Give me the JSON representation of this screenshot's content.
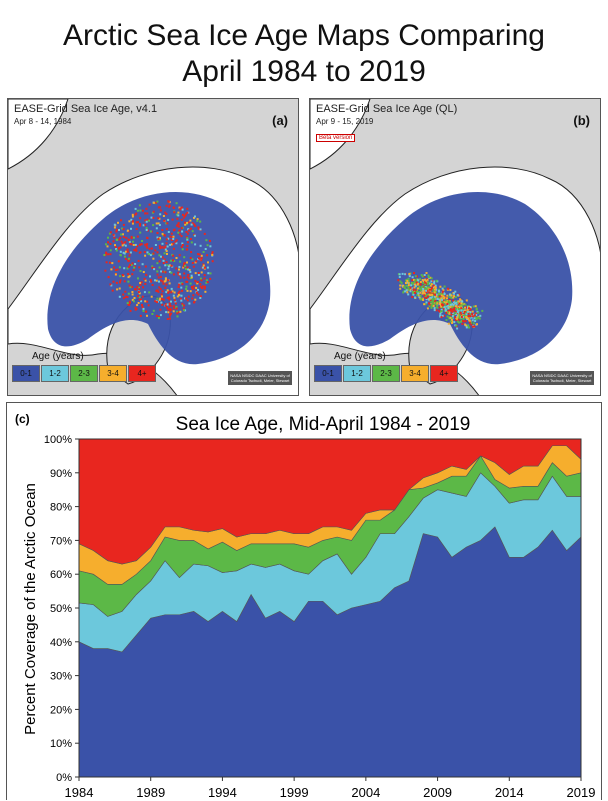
{
  "title": {
    "line1": "Arctic Sea Ice Age Maps Comparing",
    "line2": "April 1984 to 2019"
  },
  "maps": [
    {
      "title": "EASE-Grid Sea Ice Age, v4.1",
      "date": "Apr 8 - 14, 1984",
      "letter": "(a)",
      "beta": ""
    },
    {
      "title": "EASE-Grid Sea Ice Age (QL)",
      "date": "Apr 9 - 15, 2019",
      "letter": "(b)",
      "beta": "Beta version"
    }
  ],
  "legend": {
    "title": "Age (years)",
    "items": [
      {
        "label": "0-1",
        "color": "#3a52a8"
      },
      {
        "label": "1-2",
        "color": "#6cc8dc"
      },
      {
        "label": "2-3",
        "color": "#5cb847"
      },
      {
        "label": "3-4",
        "color": "#f6ae2d"
      },
      {
        "label": "4+",
        "color": "#e8261f"
      }
    ]
  },
  "credit": "NASA NSIDC DAAC University of Colorado Tschudi, Meier, Stewart",
  "colors": {
    "ocean": "#ffffff",
    "land": "#d4d4d4",
    "coast": "#222222"
  },
  "chart_data": {
    "type": "area",
    "panel_label": "(c)",
    "title": "Sea Ice Age, Mid-April 1984 - 2019",
    "xlabel": "",
    "ylabel": "Percent Coverage of the Arctic Ocean",
    "xlim": [
      1984,
      2019
    ],
    "ylim": [
      0,
      100
    ],
    "x_ticks": [
      "1984",
      "1989",
      "1994",
      "1999",
      "2004",
      "2009",
      "2014",
      "2019"
    ],
    "y_ticks": [
      "0%",
      "10%",
      "20%",
      "30%",
      "40%",
      "50%",
      "60%",
      "70%",
      "80%",
      "90%",
      "100%"
    ],
    "stacked": true,
    "x": [
      1984,
      1985,
      1986,
      1987,
      1988,
      1989,
      1990,
      1991,
      1992,
      1993,
      1994,
      1995,
      1996,
      1997,
      1998,
      1999,
      2000,
      2001,
      2002,
      2003,
      2004,
      2005,
      2006,
      2007,
      2008,
      2009,
      2010,
      2011,
      2012,
      2013,
      2014,
      2015,
      2016,
      2017,
      2018,
      2019
    ],
    "series": [
      {
        "name": "0-1",
        "color": "#3a52a8",
        "values": [
          40,
          38,
          38,
          37,
          42,
          47,
          48,
          48,
          49,
          46,
          49,
          46,
          54,
          47,
          49,
          46,
          52,
          52,
          48,
          50,
          51,
          52,
          56,
          58,
          72,
          71,
          65,
          68,
          70,
          74,
          65,
          65,
          68,
          73,
          67,
          71
        ]
      },
      {
        "name": "1-2",
        "color": "#6cc8dc",
        "values": [
          11.5,
          13,
          9.5,
          12,
          12,
          11,
          16,
          11,
          14,
          16.5,
          11.5,
          15,
          9,
          15,
          14,
          15,
          8,
          12,
          18,
          10,
          14,
          20,
          16,
          19,
          10.5,
          14,
          19,
          15,
          20,
          12,
          16,
          17,
          14,
          16,
          16,
          12
        ]
      },
      {
        "name": "2-3",
        "color": "#5cb847",
        "values": [
          9.5,
          9,
          9.5,
          8,
          6,
          6,
          7,
          11,
          7,
          5,
          9,
          6,
          6,
          7,
          6,
          8,
          8,
          6,
          5,
          10,
          11,
          4,
          7,
          8,
          3,
          2,
          5,
          6,
          5,
          2,
          4.5,
          4,
          4,
          4,
          6,
          7
        ]
      },
      {
        "name": "3-4",
        "color": "#f6ae2d",
        "values": [
          8,
          7,
          7,
          6,
          4,
          4,
          3,
          4,
          3,
          5,
          4,
          4,
          3,
          3,
          4,
          3,
          4,
          4,
          3,
          3,
          2,
          3,
          0,
          0,
          3,
          3,
          3,
          2,
          0,
          5,
          4,
          6,
          6,
          5,
          9,
          4
        ]
      },
      {
        "name": "4+",
        "color": "#e8261f",
        "values": [
          31,
          33,
          36,
          37,
          36,
          32,
          26,
          26,
          27,
          27.5,
          26.5,
          29,
          28,
          28,
          27,
          28,
          28,
          26,
          26,
          27,
          22,
          21,
          21,
          15,
          11.5,
          10,
          8,
          9,
          5,
          7,
          10.5,
          8,
          8,
          2,
          2,
          6
        ]
      }
    ]
  }
}
